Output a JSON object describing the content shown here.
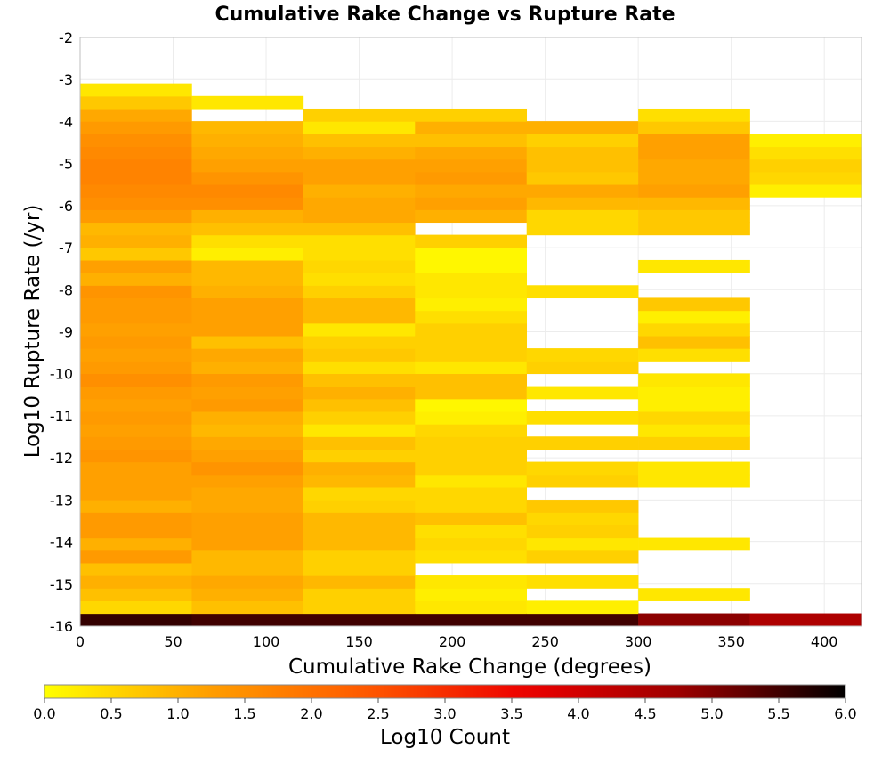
{
  "chart_data": {
    "type": "heatmap",
    "title": "Cumulative Rake Change vs Rupture Rate",
    "xlabel": "Cumulative Rake Change (degrees)",
    "ylabel": "Log10 Rupture Rate (/yr)",
    "xlim": [
      0,
      420
    ],
    "ylim": [
      -16,
      -2
    ],
    "x_ticks": [
      "0",
      "50",
      "100",
      "150",
      "200",
      "250",
      "300",
      "350",
      "400"
    ],
    "y_ticks": [
      "-2",
      "-3",
      "-4",
      "-5",
      "-6",
      "-7",
      "-8",
      "-9",
      "-10",
      "-11",
      "-12",
      "-13",
      "-14",
      "-15",
      "-16"
    ],
    "grid": true,
    "x_bin_width": 60,
    "y_bin_height": 0.3,
    "colorscale": {
      "label": "Log10 Count",
      "range": [
        0,
        6
      ],
      "ticks": [
        "0.0",
        "0.5",
        "1.0",
        "1.5",
        "2.0",
        "2.5",
        "3.0",
        "3.5",
        "4.0",
        "4.5",
        "5.0",
        "5.5",
        "6.0"
      ],
      "colors": [
        "#ffff00",
        "#ffa000",
        "#ff5a00",
        "#ee0000",
        "#990000",
        "#000000"
      ]
    },
    "columns": [
      {
        "x": 0,
        "cells": [
          [
            -16,
            5.6
          ],
          [
            -15.7,
            0.5
          ],
          [
            -15.4,
            0.8
          ],
          [
            -15.1,
            1.0
          ],
          [
            -14.8,
            0.8
          ],
          [
            -14.5,
            1.3
          ],
          [
            -14.2,
            1.0
          ],
          [
            -13.9,
            1.3
          ],
          [
            -13.6,
            1.3
          ],
          [
            -13.3,
            1.0
          ],
          [
            -13.0,
            1.2
          ],
          [
            -12.7,
            1.2
          ],
          [
            -12.4,
            1.2
          ],
          [
            -12.1,
            1.4
          ],
          [
            -11.8,
            1.3
          ],
          [
            -11.5,
            1.2
          ],
          [
            -11.2,
            1.3
          ],
          [
            -10.9,
            1.2
          ],
          [
            -10.6,
            1.3
          ],
          [
            -10.3,
            1.5
          ],
          [
            -10.0,
            1.3
          ],
          [
            -9.7,
            1.2
          ],
          [
            -9.4,
            1.3
          ],
          [
            -9.1,
            1.2
          ],
          [
            -8.8,
            1.3
          ],
          [
            -8.5,
            1.3
          ],
          [
            -8.2,
            1.4
          ],
          [
            -7.9,
            1.0
          ],
          [
            -7.6,
            1.2
          ],
          [
            -7.3,
            0.7
          ],
          [
            -7.0,
            1.0
          ],
          [
            -6.7,
            0.9
          ],
          [
            -6.4,
            1.3
          ],
          [
            -6.1,
            1.5
          ],
          [
            -5.8,
            1.6
          ],
          [
            -5.5,
            1.7
          ],
          [
            -5.2,
            1.7
          ],
          [
            -4.9,
            1.6
          ],
          [
            -4.6,
            1.5
          ],
          [
            -4.3,
            1.3
          ],
          [
            -4.0,
            1.1
          ],
          [
            -3.7,
            0.7
          ],
          [
            -3.4,
            0.3
          ]
        ]
      },
      {
        "x": 60,
        "cells": [
          [
            -16,
            5.5
          ],
          [
            -15.7,
            0.8
          ],
          [
            -15.4,
            1.0
          ],
          [
            -15.1,
            1.1
          ],
          [
            -14.8,
            0.9
          ],
          [
            -14.5,
            0.9
          ],
          [
            -14.2,
            1.2
          ],
          [
            -13.9,
            1.2
          ],
          [
            -13.6,
            1.2
          ],
          [
            -13.3,
            1.1
          ],
          [
            -13.0,
            1.1
          ],
          [
            -12.7,
            1.2
          ],
          [
            -12.4,
            1.4
          ],
          [
            -12.1,
            1.2
          ],
          [
            -11.8,
            1.1
          ],
          [
            -11.5,
            0.9
          ],
          [
            -11.2,
            1.0
          ],
          [
            -10.9,
            1.3
          ],
          [
            -10.6,
            1.2
          ],
          [
            -10.3,
            1.3
          ],
          [
            -10.0,
            1.0
          ],
          [
            -9.7,
            1.1
          ],
          [
            -9.4,
            0.8
          ],
          [
            -9.1,
            1.2
          ],
          [
            -8.8,
            1.2
          ],
          [
            -8.5,
            1.2
          ],
          [
            -8.2,
            1.0
          ],
          [
            -7.9,
            0.9
          ],
          [
            -7.6,
            0.9
          ],
          [
            -7.3,
            0.2
          ],
          [
            -7.0,
            0.4
          ],
          [
            -6.7,
            0.8
          ],
          [
            -6.4,
            1.0
          ],
          [
            -6.1,
            1.5
          ],
          [
            -5.8,
            1.6
          ],
          [
            -5.5,
            1.4
          ],
          [
            -5.2,
            1.2
          ],
          [
            -4.9,
            1.1
          ],
          [
            -4.6,
            1.0
          ],
          [
            -4.3,
            0.9
          ],
          [
            -3.7,
            0.3
          ]
        ]
      },
      {
        "x": 120,
        "cells": [
          [
            -16,
            5.5
          ],
          [
            -15.7,
            0.6
          ],
          [
            -15.4,
            0.6
          ],
          [
            -15.1,
            0.9
          ],
          [
            -14.8,
            0.6
          ],
          [
            -14.5,
            0.6
          ],
          [
            -14.2,
            0.9
          ],
          [
            -13.9,
            0.9
          ],
          [
            -13.6,
            0.9
          ],
          [
            -13.3,
            0.6
          ],
          [
            -13.0,
            0.5
          ],
          [
            -12.7,
            0.9
          ],
          [
            -12.4,
            1.0
          ],
          [
            -12.1,
            0.6
          ],
          [
            -11.8,
            0.8
          ],
          [
            -11.5,
            0.3
          ],
          [
            -11.2,
            0.6
          ],
          [
            -10.9,
            0.8
          ],
          [
            -10.6,
            1.0
          ],
          [
            -10.3,
            0.8
          ],
          [
            -10.0,
            0.4
          ],
          [
            -9.7,
            0.7
          ],
          [
            -9.4,
            0.6
          ],
          [
            -9.1,
            0.3
          ],
          [
            -8.8,
            0.9
          ],
          [
            -8.5,
            0.9
          ],
          [
            -8.2,
            0.6
          ],
          [
            -7.9,
            0.4
          ],
          [
            -7.6,
            0.5
          ],
          [
            -7.3,
            0.4
          ],
          [
            -7.0,
            0.4
          ],
          [
            -6.7,
            0.8
          ],
          [
            -6.4,
            1.1
          ],
          [
            -6.1,
            1.1
          ],
          [
            -5.8,
            1.0
          ],
          [
            -5.5,
            1.2
          ],
          [
            -5.2,
            1.2
          ],
          [
            -4.9,
            1.0
          ],
          [
            -4.6,
            0.8
          ],
          [
            -4.3,
            0.3
          ],
          [
            -4.0,
            0.6
          ]
        ]
      },
      {
        "x": 180,
        "cells": [
          [
            -16,
            5.5
          ],
          [
            -15.7,
            0.3
          ],
          [
            -15.4,
            0.2
          ],
          [
            -15.1,
            0.3
          ],
          [
            -14.5,
            0.4
          ],
          [
            -14.2,
            0.5
          ],
          [
            -13.9,
            0.4
          ],
          [
            -13.6,
            0.8
          ],
          [
            -13.3,
            0.5
          ],
          [
            -13.0,
            0.5
          ],
          [
            -12.7,
            0.3
          ],
          [
            -12.4,
            0.6
          ],
          [
            -12.1,
            0.6
          ],
          [
            -11.8,
            0.6
          ],
          [
            -11.5,
            0.5
          ],
          [
            -11.2,
            0.2
          ],
          [
            -10.9,
            0.1
          ],
          [
            -10.6,
            0.8
          ],
          [
            -10.3,
            0.8
          ],
          [
            -10.0,
            0.3
          ],
          [
            -9.7,
            0.6
          ],
          [
            -9.4,
            0.6
          ],
          [
            -9.1,
            0.6
          ],
          [
            -8.8,
            0.4
          ],
          [
            -8.5,
            0.2
          ],
          [
            -8.2,
            0.3
          ],
          [
            -7.9,
            0.3
          ],
          [
            -7.6,
            0.1
          ],
          [
            -7.3,
            0.1
          ],
          [
            -7.0,
            0.6
          ],
          [
            -6.4,
            1.0
          ],
          [
            -6.1,
            1.2
          ],
          [
            -5.8,
            1.1
          ],
          [
            -5.5,
            1.3
          ],
          [
            -5.2,
            1.2
          ],
          [
            -4.9,
            1.1
          ],
          [
            -4.6,
            0.8
          ],
          [
            -4.3,
            1.0
          ],
          [
            -4.0,
            0.6
          ]
        ]
      },
      {
        "x": 240,
        "cells": [
          [
            -16,
            5.5
          ],
          [
            -15.7,
            0.2
          ],
          [
            -15.1,
            0.4
          ],
          [
            -14.5,
            0.6
          ],
          [
            -14.2,
            0.3
          ],
          [
            -13.9,
            0.6
          ],
          [
            -13.6,
            0.5
          ],
          [
            -13.3,
            0.7
          ],
          [
            -12.7,
            0.6
          ],
          [
            -12.4,
            0.5
          ],
          [
            -11.8,
            0.6
          ],
          [
            -11.2,
            0.4
          ],
          [
            -10.6,
            0.3
          ],
          [
            -10.0,
            0.6
          ],
          [
            -9.7,
            0.5
          ],
          [
            -8.2,
            0.4
          ],
          [
            -6.7,
            0.5
          ],
          [
            -6.4,
            0.5
          ],
          [
            -6.1,
            0.9
          ],
          [
            -5.8,
            1.1
          ],
          [
            -5.5,
            0.7
          ],
          [
            -5.2,
            0.8
          ],
          [
            -4.9,
            0.8
          ],
          [
            -4.6,
            0.6
          ],
          [
            -4.3,
            1.0
          ]
        ]
      },
      {
        "x": 300,
        "cells": [
          [
            -16,
            4.9
          ],
          [
            -15.4,
            0.3
          ],
          [
            -14.2,
            0.3
          ],
          [
            -12.7,
            0.3
          ],
          [
            -12.4,
            0.3
          ],
          [
            -11.8,
            0.6
          ],
          [
            -11.5,
            0.3
          ],
          [
            -11.2,
            0.5
          ],
          [
            -10.9,
            0.2
          ],
          [
            -10.6,
            0.2
          ],
          [
            -10.3,
            0.3
          ],
          [
            -9.7,
            0.4
          ],
          [
            -9.4,
            0.8
          ],
          [
            -9.1,
            0.5
          ],
          [
            -8.8,
            0.2
          ],
          [
            -8.5,
            0.7
          ],
          [
            -7.6,
            0.3
          ],
          [
            -6.7,
            0.7
          ],
          [
            -6.4,
            0.7
          ],
          [
            -6.1,
            0.9
          ],
          [
            -5.8,
            1.2
          ],
          [
            -5.5,
            1.1
          ],
          [
            -5.2,
            1.1
          ],
          [
            -4.9,
            1.2
          ],
          [
            -4.6,
            1.2
          ],
          [
            -4.3,
            0.7
          ],
          [
            -4.0,
            0.4
          ]
        ]
      },
      {
        "x": 360,
        "cells": [
          [
            -16,
            4.5
          ],
          [
            -5.8,
            0.2
          ],
          [
            -5.5,
            0.5
          ],
          [
            -5.2,
            0.6
          ],
          [
            -4.9,
            0.4
          ],
          [
            -4.6,
            0.2
          ]
        ]
      }
    ]
  }
}
